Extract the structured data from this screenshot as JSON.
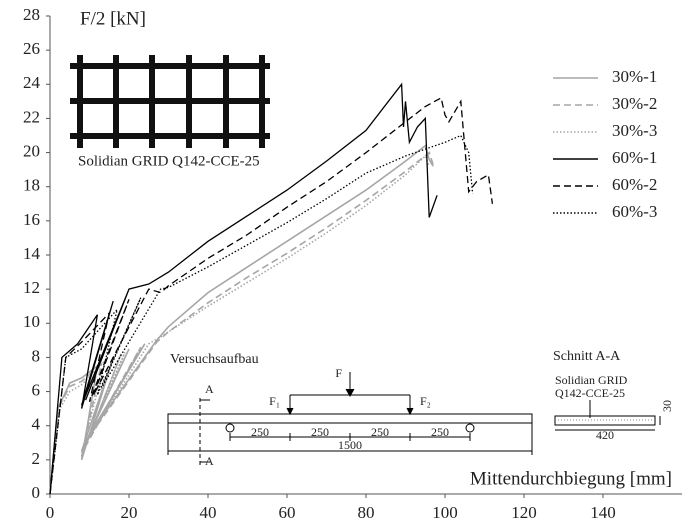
{
  "chart_data": {
    "type": "line",
    "y_label": "F/2 [kN]",
    "x_label": "Mittendurchbiegung [mm]",
    "xlim": [
      0,
      160
    ],
    "xticks": [
      0,
      20,
      40,
      60,
      80,
      100,
      120,
      140
    ],
    "ylim": [
      0,
      28
    ],
    "yticks": [
      0,
      2,
      4,
      6,
      8,
      10,
      12,
      14,
      16,
      18,
      20,
      22,
      24,
      26,
      28
    ],
    "grid": false,
    "legend": "right",
    "series": [
      {
        "name": "30%-1",
        "color": "#a6a6a6",
        "dash": "solid",
        "x": [
          0,
          2,
          5,
          8,
          12,
          8,
          16,
          8,
          20,
          9,
          24,
          10,
          27,
          30,
          40,
          50,
          60,
          70,
          80,
          90,
          95,
          96,
          97
        ],
        "values": [
          0,
          5,
          6.5,
          6.8,
          7.5,
          2,
          8,
          2.5,
          8.5,
          3,
          8.8,
          3.5,
          9,
          9.8,
          11.8,
          13.3,
          14.8,
          16.3,
          17.8,
          19.5,
          20.4,
          19.6,
          19.2
        ]
      },
      {
        "name": "30%-2",
        "color": "#a6a6a6",
        "dash": "dashed",
        "x": [
          0,
          2,
          5,
          8,
          13,
          8,
          18,
          9,
          23,
          10,
          27,
          30,
          40,
          50,
          60,
          70,
          80,
          90,
          96,
          97
        ],
        "values": [
          0,
          5,
          6.3,
          6.6,
          7.6,
          2.2,
          8.2,
          2.8,
          8.6,
          3.4,
          8.9,
          9.5,
          11.2,
          12.7,
          14.1,
          15.6,
          17.2,
          18.9,
          20,
          19.3
        ]
      },
      {
        "name": "30%-3",
        "color": "#a6a6a6",
        "dash": "dotted",
        "x": [
          0,
          2,
          5,
          8,
          14,
          8,
          19,
          9,
          25,
          28,
          40,
          50,
          60,
          70,
          80,
          90,
          95,
          96
        ],
        "values": [
          0,
          4.8,
          6,
          6.4,
          7.8,
          2.4,
          8.3,
          3,
          8.8,
          9.2,
          11,
          12.4,
          13.8,
          15.3,
          16.9,
          18.7,
          19.8,
          19.2
        ]
      },
      {
        "name": "60%-1",
        "color": "#000000",
        "dash": "solid",
        "x": [
          0,
          3,
          7,
          12,
          8,
          16,
          8,
          20,
          9,
          20,
          25,
          30,
          40,
          50,
          60,
          70,
          80,
          89,
          89.5,
          90,
          91,
          93,
          95,
          96,
          98
        ],
        "values": [
          0,
          8,
          8.8,
          10.5,
          5,
          11.3,
          5.2,
          12,
          5.5,
          12,
          12.3,
          13,
          14.8,
          16.3,
          17.8,
          19.5,
          21.3,
          24,
          21.5,
          23,
          20.6,
          21.5,
          22,
          16.2,
          17.5
        ]
      },
      {
        "name": "60%-2",
        "color": "#000000",
        "dash": "dashed",
        "x": [
          0,
          4,
          8,
          15,
          10,
          20,
          11,
          25,
          28,
          30,
          40,
          50,
          60,
          70,
          80,
          90,
          95,
          99,
          100,
          101,
          104,
          106,
          108,
          111,
          112
        ],
        "values": [
          0,
          8,
          8.9,
          10.6,
          5.4,
          11.4,
          5.8,
          12,
          11.8,
          12.2,
          13.8,
          15.2,
          16.8,
          18.3,
          20,
          21.8,
          22.7,
          23.2,
          22.2,
          21.8,
          23,
          17.7,
          18.3,
          18.7,
          17
        ]
      },
      {
        "name": "60%-3",
        "color": "#000000",
        "dash": "dotted",
        "x": [
          0,
          4,
          8,
          17,
          12,
          23,
          13,
          28,
          30,
          40,
          50,
          60,
          70,
          80,
          90,
          100,
          104,
          106,
          107
        ],
        "values": [
          0,
          8,
          8.5,
          10.8,
          5.8,
          11.5,
          6.2,
          12,
          12.1,
          13.3,
          14.6,
          15.9,
          17.3,
          18.8,
          19.8,
          20.6,
          21,
          20,
          17.6
        ]
      }
    ],
    "annotations": {
      "image_caption": "Solidian GRID Q142-CCE-25",
      "setup_title": "Versuchsaufbau",
      "force": "F",
      "force_1": "F₁",
      "force_2": "F₂",
      "section_marks": [
        "A",
        "A"
      ],
      "spans": [
        "250",
        "250",
        "250",
        "250"
      ],
      "length": "1500",
      "section_title": "Schnitt A-A",
      "section_material": [
        "Solidian GRID",
        "Q142-CCE-25"
      ],
      "section_width": "420",
      "section_height": "30"
    }
  }
}
